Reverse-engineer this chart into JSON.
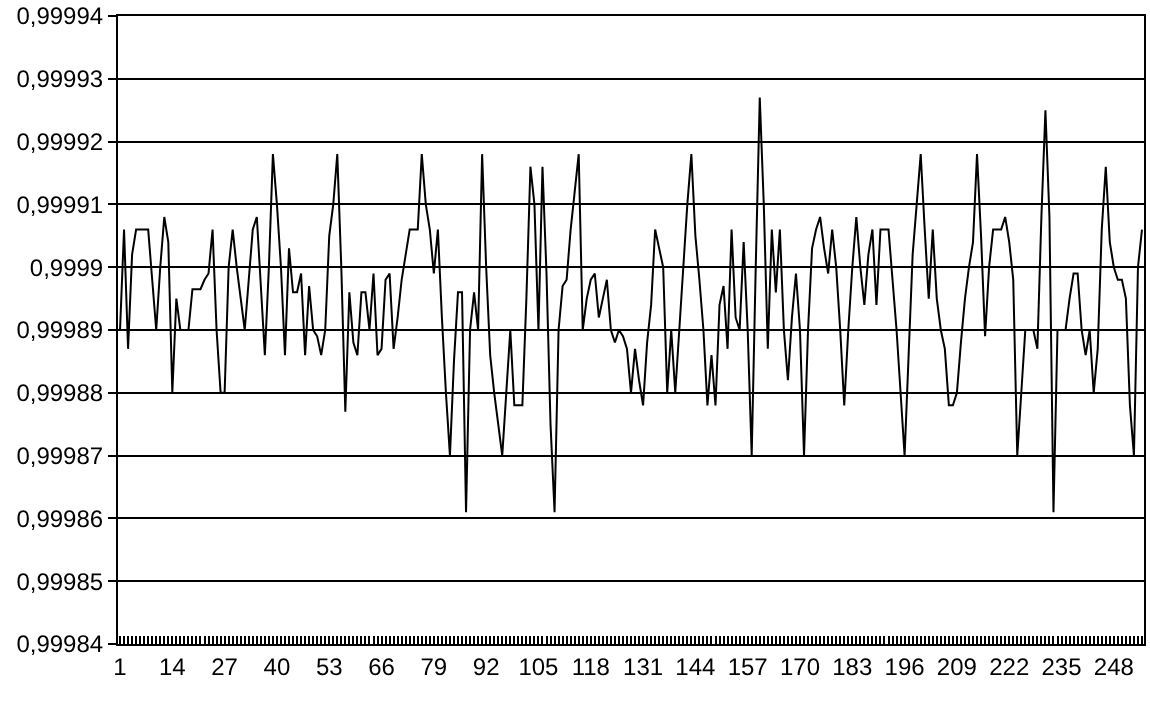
{
  "chart_data": {
    "type": "line",
    "categories": [
      "1",
      null,
      null,
      null,
      null,
      null,
      null,
      null,
      null,
      null,
      null,
      null,
      null,
      "14",
      null,
      null,
      null,
      null,
      null,
      null,
      null,
      null,
      null,
      null,
      null,
      null,
      "27",
      null,
      null,
      null,
      null,
      null,
      null,
      null,
      null,
      null,
      null,
      null,
      null,
      "40",
      null,
      null,
      null,
      null,
      null,
      null,
      null,
      null,
      null,
      null,
      null,
      null,
      "53",
      null,
      null,
      null,
      null,
      null,
      null,
      null,
      null,
      null,
      null,
      null,
      null,
      "66",
      null,
      null,
      null,
      null,
      null,
      null,
      null,
      null,
      null,
      null,
      null,
      null,
      "79",
      null,
      null,
      null,
      null,
      null,
      null,
      null,
      null,
      null,
      null,
      null,
      null,
      "92",
      null,
      null,
      null,
      null,
      null,
      null,
      null,
      null,
      null,
      null,
      null,
      null,
      "105",
      null,
      null,
      null,
      null,
      null,
      null,
      null,
      null,
      null,
      null,
      null,
      null,
      "118",
      null,
      null,
      null,
      null,
      null,
      null,
      null,
      null,
      null,
      null,
      null,
      null,
      "131",
      null,
      null,
      null,
      null,
      null,
      null,
      null,
      null,
      null,
      null,
      null,
      null,
      "144",
      null,
      null,
      null,
      null,
      null,
      null,
      null,
      null,
      null,
      null,
      null,
      null,
      "157",
      null,
      null,
      null,
      null,
      null,
      null,
      null,
      null,
      null,
      null,
      null,
      null,
      "170",
      null,
      null,
      null,
      null,
      null,
      null,
      null,
      null,
      null,
      null,
      null,
      null,
      "183",
      null,
      null,
      null,
      null,
      null,
      null,
      null,
      null,
      null,
      null,
      null,
      null,
      "196",
      null,
      null,
      null,
      null,
      null,
      null,
      null,
      null,
      null,
      null,
      null,
      null,
      "209",
      null,
      null,
      null,
      null,
      null,
      null,
      null,
      null,
      null,
      null,
      null,
      null,
      "222",
      null,
      null,
      null,
      null,
      null,
      null,
      null,
      null,
      null,
      null,
      null,
      null,
      "235",
      null,
      null,
      null,
      null,
      null,
      null,
      null,
      null,
      null,
      null,
      null,
      null,
      "248",
      null,
      null,
      null,
      null,
      null,
      null,
      null
    ],
    "color": "#000000",
    "values": [
      0.99989,
      0.999906,
      0.999887,
      0.999902,
      0.999906,
      0.999906,
      0.999906,
      0.999906,
      0.999898,
      0.99989,
      0.9999,
      0.999908,
      0.999904,
      0.99988,
      0.999895,
      0.99989,
      0.99989,
      0.99989,
      0.9998965,
      0.9998965,
      0.9998965,
      0.999898,
      0.999899,
      0.999906,
      0.99989,
      0.99988,
      0.99988,
      0.9999,
      0.999906,
      0.9999,
      0.999895,
      0.99989,
      0.999898,
      0.999906,
      0.999908,
      0.999897,
      0.999886,
      0.9999,
      0.999918,
      0.99991,
      0.9999,
      0.999886,
      0.999903,
      0.999896,
      0.999896,
      0.999899,
      0.999886,
      0.999897,
      0.99989,
      0.999889,
      0.999886,
      0.99989,
      0.999905,
      0.99991,
      0.999918,
      0.9999,
      0.999877,
      0.999896,
      0.999888,
      0.999886,
      0.999896,
      0.999896,
      0.99989,
      0.999899,
      0.999886,
      0.999887,
      0.999898,
      0.999899,
      0.999887,
      0.999892,
      0.999898,
      0.999902,
      0.999906,
      0.999906,
      0.999906,
      0.999918,
      0.99991,
      0.999906,
      0.999899,
      0.999906,
      0.999892,
      0.99988,
      0.99987,
      0.999885,
      0.999896,
      0.999896,
      0.999861,
      0.99989,
      0.999896,
      0.99989,
      0.999918,
      0.9999,
      0.999886,
      0.99988,
      0.999875,
      0.99987,
      0.99988,
      0.99989,
      0.999878,
      0.999878,
      0.999878,
      0.999895,
      0.999916,
      0.99991,
      0.99989,
      0.999916,
      0.999899,
      0.999875,
      0.999861,
      0.99989,
      0.999897,
      0.999898,
      0.999906,
      0.999912,
      0.999918,
      0.99989,
      0.999895,
      0.999898,
      0.999899,
      0.999892,
      0.999895,
      0.999898,
      0.99989,
      0.999888,
      0.99989,
      0.999889,
      0.999887,
      0.99988,
      0.999887,
      0.999882,
      0.999878,
      0.999888,
      0.999894,
      0.999906,
      0.999903,
      0.9999,
      0.99988,
      0.99989,
      0.99988,
      0.99989,
      0.9999,
      0.99991,
      0.999918,
      0.999905,
      0.999898,
      0.99989,
      0.999878,
      0.999886,
      0.999878,
      0.999894,
      0.999897,
      0.999887,
      0.999906,
      0.999892,
      0.99989,
      0.999904,
      0.99989,
      0.99987,
      0.9999,
      0.999927,
      0.99991,
      0.999887,
      0.999906,
      0.999896,
      0.999906,
      0.99989,
      0.999882,
      0.999892,
      0.999899,
      0.99989,
      0.99987,
      0.99989,
      0.999903,
      0.999906,
      0.999908,
      0.999903,
      0.999899,
      0.999906,
      0.9999,
      0.99989,
      0.999878,
      0.99989,
      0.9999,
      0.999908,
      0.9999,
      0.999894,
      0.999902,
      0.999906,
      0.999894,
      0.999906,
      0.999906,
      0.999906,
      0.999898,
      0.99989,
      0.99988,
      0.99987,
      0.999886,
      0.999902,
      0.99991,
      0.999918,
      0.999906,
      0.999895,
      0.999906,
      0.999895,
      0.99989,
      0.999887,
      0.999878,
      0.999878,
      0.99988,
      0.999888,
      0.999895,
      0.9999,
      0.999904,
      0.999918,
      0.999905,
      0.999889,
      0.9999,
      0.999906,
      0.999906,
      0.999906,
      0.999908,
      0.999904,
      0.999898,
      0.99987,
      0.99988,
      0.99989,
      0.99989,
      0.99989,
      0.999887,
      0.999908,
      0.999925,
      0.999908,
      0.999861,
      0.99989,
      0.99989,
      0.99989,
      0.999895,
      0.999899,
      0.999899,
      0.99989,
      0.999886,
      0.99989,
      0.99988,
      0.999887,
      0.999906,
      0.999916,
      0.999904,
      0.9999,
      0.999898,
      0.999898,
      0.999895,
      0.999878,
      0.99987,
      0.9999,
      0.999906
    ],
    "ylim": [
      0.99984,
      0.99994
    ],
    "yticks": [
      {
        "value": 0.99984,
        "label": "0,99984"
      },
      {
        "value": 0.99985,
        "label": "0,99985"
      },
      {
        "value": 0.99986,
        "label": "0,99986"
      },
      {
        "value": 0.99987,
        "label": "0,99987"
      },
      {
        "value": 0.99988,
        "label": "0,99988"
      },
      {
        "value": 0.99989,
        "label": "0,99989"
      },
      {
        "value": 0.9999,
        "label": "0,9999"
      },
      {
        "value": 0.99991,
        "label": "0,99991"
      },
      {
        "value": 0.99992,
        "label": "0,99992"
      },
      {
        "value": 0.99993,
        "label": "0,99993"
      },
      {
        "value": 0.99994,
        "label": "0,99994"
      }
    ],
    "grid": "y"
  }
}
